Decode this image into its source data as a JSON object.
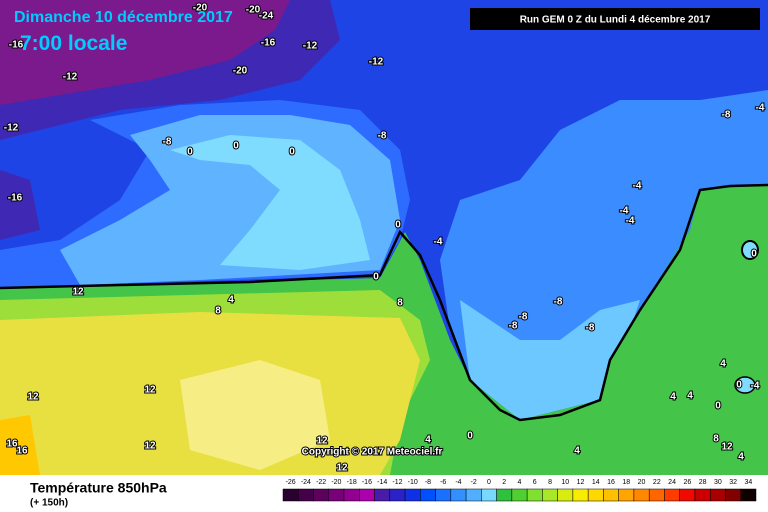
{
  "header": {
    "date": "Dimanche 10 décembre 2017",
    "time": "7:00 locale",
    "run": "Run GEM 0 Z du Lundi 4 décembre 2017"
  },
  "footer": {
    "title": "Température 850hPa",
    "subtitle": "(+ 150h)",
    "copyright": "Copyright © 2017 Meteociel.fr"
  },
  "legend": {
    "values": [
      -26,
      -24,
      -22,
      -20,
      -18,
      -16,
      -14,
      -12,
      -10,
      -8,
      -6,
      -4,
      -2,
      0,
      2,
      4,
      6,
      8,
      10,
      12,
      14,
      16,
      18,
      20,
      22,
      24,
      26,
      28,
      30,
      32,
      34
    ],
    "colors": [
      "#2a0030",
      "#440048",
      "#5e005e",
      "#780078",
      "#920092",
      "#ac00ac",
      "#4a1aa8",
      "#2a22c8",
      "#1030e8",
      "#0050ff",
      "#1a70ff",
      "#3490ff",
      "#50b0ff",
      "#78d8ff",
      "#30c040",
      "#50d030",
      "#80e030",
      "#a8e828",
      "#d8ec10",
      "#f8ec00",
      "#ffd800",
      "#ffc000",
      "#ffa400",
      "#ff8800",
      "#ff6600",
      "#ff3c00",
      "#ee0a00",
      "#cc0000",
      "#a80000",
      "#800000",
      "#100000"
    ]
  },
  "map": {
    "labels": [
      "-20",
      "-20",
      "-24",
      "-16",
      "-12",
      "-16",
      "-12",
      "-20",
      "-12",
      "-12",
      "-8",
      "-8",
      "0",
      "0",
      "0",
      "-16",
      "-8",
      "-4",
      "-4",
      "-4",
      "-4",
      "0",
      "-4",
      "0",
      "0",
      "12",
      "4",
      "8",
      "8",
      "-8",
      "-8",
      "-8",
      "-8",
      "12",
      "12",
      "4",
      "0",
      "-4",
      "4",
      "4",
      "0",
      "0",
      "8",
      "12",
      "12",
      "16",
      "16",
      "12",
      "4",
      "4",
      "12",
      "4"
    ]
  }
}
